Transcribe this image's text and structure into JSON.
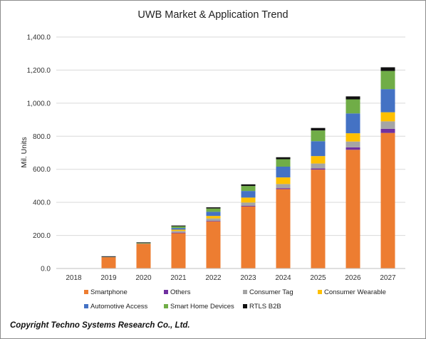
{
  "footer": {
    "copyright": "Copyright Techno Systems Research Co., Ltd."
  },
  "chart_data": {
    "type": "bar",
    "stacked": true,
    "title": "UWB Market & Application Trend",
    "xlabel": "",
    "ylabel": "Mil. Units",
    "ylim": [
      0,
      1400
    ],
    "yticks": [
      "0.0",
      "200.0",
      "400.0",
      "600.0",
      "800.0",
      "1,000.0",
      "1,200.0",
      "1,400.0"
    ],
    "grid": true,
    "legend_position": "bottom",
    "categories": [
      "2018",
      "2019",
      "2020",
      "2021",
      "2022",
      "2023",
      "2024",
      "2025",
      "2026",
      "2027"
    ],
    "series": [
      {
        "name": "Smartphone",
        "color": "#ED7D31",
        "values": [
          2,
          70,
          150,
          215,
          285,
          375,
          480,
          598,
          718,
          820
        ]
      },
      {
        "name": "Others",
        "color": "#7030A0",
        "values": [
          0,
          0,
          0,
          2,
          3,
          4,
          6,
          7,
          15,
          25
        ]
      },
      {
        "name": "Consumer Tag",
        "color": "#A5A5A5",
        "values": [
          0,
          1,
          2,
          10,
          15,
          20,
          25,
          30,
          35,
          45
        ]
      },
      {
        "name": "Consumer Wearable",
        "color": "#FFC000",
        "values": [
          0,
          1,
          2,
          8,
          15,
          30,
          40,
          45,
          50,
          55
        ]
      },
      {
        "name": "Automotive Access",
        "color": "#4472C4",
        "values": [
          0,
          1,
          1,
          10,
          25,
          40,
          65,
          90,
          120,
          140
        ]
      },
      {
        "name": "Smart Home Devices",
        "color": "#70AD47",
        "values": [
          0,
          0,
          1,
          10,
          20,
          30,
          45,
          65,
          85,
          110
        ]
      },
      {
        "name": "RTLS B2B",
        "color": "#111111",
        "values": [
          0,
          1,
          2,
          5,
          7,
          10,
          12,
          15,
          18,
          22
        ]
      }
    ]
  }
}
